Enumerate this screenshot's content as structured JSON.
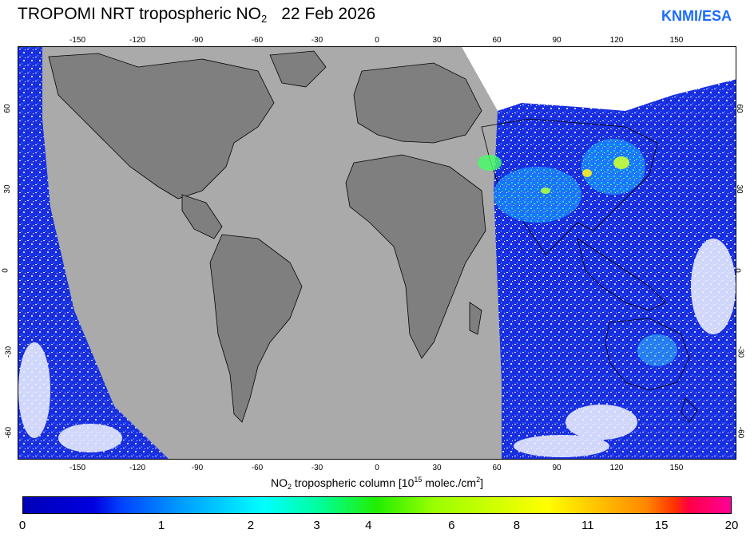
{
  "header": {
    "title_main": "TROPOMI  NRT tropospheric NO",
    "title_sub": "2",
    "title_date": "22 Feb 2026",
    "brand": "KNMI/ESA"
  },
  "map": {
    "lon_ticks": [
      "-150",
      "-120",
      "-90",
      "-60",
      "-30",
      "0",
      "30",
      "60",
      "90",
      "120",
      "150"
    ],
    "lat_ticks_left": [
      "60",
      "30",
      "0",
      "-30",
      "-60"
    ],
    "lat_ticks_right": [
      "60",
      "30",
      "0",
      "-30",
      "-60"
    ],
    "no_data_color": "#aaaaaa",
    "land_color": "#7f7f7f"
  },
  "colorbar": {
    "label_pre": "NO",
    "label_sub": "2",
    "label_mid": " tropospheric column [10",
    "label_sup1": "15",
    "label_mid2": " molec./cm",
    "label_sup2": "2",
    "label_end": "]",
    "ticks": [
      "0",
      "1",
      "2",
      "3",
      "4",
      "6",
      "8",
      "11",
      "15",
      "20"
    ]
  }
}
